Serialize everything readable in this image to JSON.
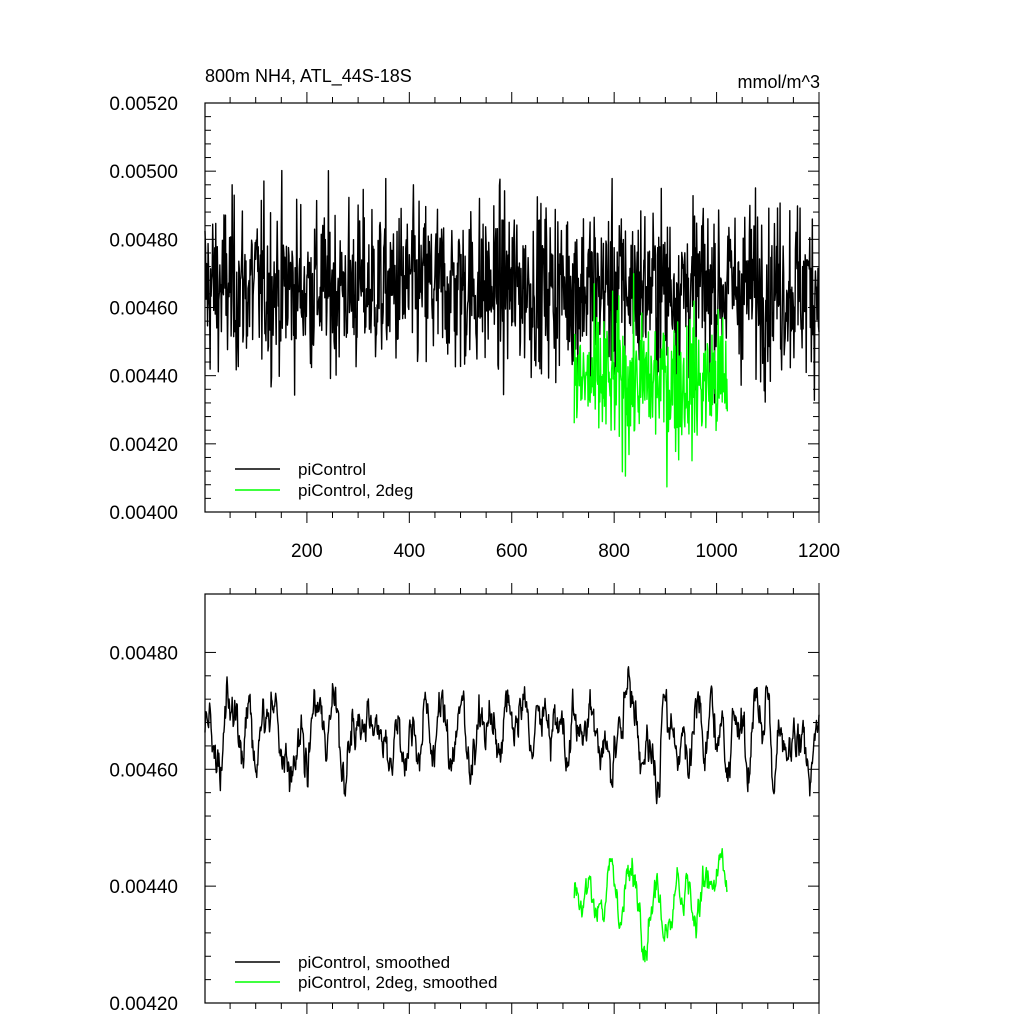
{
  "colors": {
    "series_black": "#000000",
    "series_green": "#00ff00",
    "axis": "#000000"
  },
  "chart_data": [
    {
      "type": "line",
      "title": "800m NH4, ATL_44S-18S",
      "units": "mmol/m^3",
      "xlim": [
        1,
        1200
      ],
      "ylim": [
        0.004,
        0.0052
      ],
      "x_ticks": [
        200,
        400,
        600,
        800,
        1000,
        1200
      ],
      "y_ticks": [
        "0.00400",
        "0.00420",
        "0.00440",
        "0.00460",
        "0.00480",
        "0.00500",
        "0.00520"
      ],
      "legend_position": "bottom-left",
      "series": [
        {
          "name": "piControl",
          "color": "#000000",
          "x_start": 1,
          "x_end": 1200,
          "mean": 0.00466,
          "typical_range": [
            0.00445,
            0.005
          ],
          "min": 0.00432,
          "max": 0.00502
        },
        {
          "name": "piControl, 2deg",
          "color": "#00ff00",
          "x_start": 722,
          "x_end": 1021,
          "mean": 0.00438,
          "typical_range": [
            0.0042,
            0.00465
          ],
          "min": 0.00406,
          "max": 0.0047
        }
      ]
    },
    {
      "type": "line",
      "xlim": [
        1,
        1200
      ],
      "ylim": [
        0.0042,
        0.0049
      ],
      "y_ticks": [
        "0.00420",
        "0.00440",
        "0.00460",
        "0.00480"
      ],
      "legend_position": "bottom-left",
      "series": [
        {
          "name": "piControl, smoothed",
          "color": "#000000",
          "x_start": 1,
          "x_end": 1200,
          "mean": 0.00466,
          "typical_range": [
            0.00455,
            0.0048
          ],
          "min": 0.00449,
          "max": 0.00483
        },
        {
          "name": "piControl, 2deg, smoothed",
          "color": "#00ff00",
          "x_start": 722,
          "x_end": 1021,
          "mean": 0.00438,
          "typical_range": [
            0.00427,
            0.0045
          ],
          "min": 0.00424,
          "max": 0.00453
        }
      ]
    }
  ]
}
